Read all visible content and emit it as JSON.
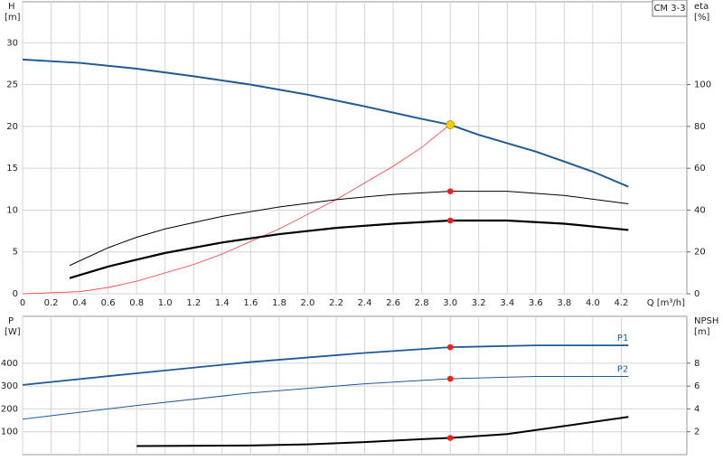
{
  "chart_data": [
    {
      "type": "line",
      "title": "CM 3-3",
      "ylabel": "H",
      "yunit": "[m]",
      "y2label": "eta",
      "y2unit": "[%]",
      "xlabel": "Q [m³/h]",
      "xlim": [
        0,
        4.66
      ],
      "ylim": [
        0,
        34.9
      ],
      "y2lim": [
        0,
        139.6
      ],
      "xticks": [
        0,
        0.2,
        0.4,
        0.6,
        0.8,
        {
          "value": 1,
          "label": "1.0"
        },
        1.2,
        1.4,
        1.6,
        1.8,
        {
          "value": 2,
          "label": "2.0"
        },
        2.2,
        2.4,
        2.6,
        2.8,
        {
          "value": 3,
          "label": "3.0"
        },
        3.2,
        3.4,
        3.6,
        3.8,
        {
          "value": 4,
          "label": "4.0"
        },
        4.2
      ],
      "yticks": [
        0,
        5,
        10,
        15,
        20,
        25,
        30
      ],
      "y2ticks": [
        0,
        20,
        40,
        60,
        80,
        100
      ],
      "grid": true,
      "series": [
        {
          "color": "#1f5a96",
          "line_width": 2,
          "axis": "y",
          "x": [
            0,
            0.4,
            0.8,
            1.2,
            1.6,
            2.0,
            2.4,
            2.8,
            3.0,
            3.2,
            3.6,
            4.0,
            4.25
          ],
          "values": [
            28,
            27.6,
            26.9,
            26.0,
            25.0,
            23.8,
            22.4,
            20.9,
            20.2,
            19.0,
            17.0,
            14.6,
            12.8
          ]
        },
        {
          "color": "#ff3b3b",
          "line_width": 0.8,
          "axis": "y2",
          "x": [
            0,
            0.4,
            0.6,
            0.8,
            1.0,
            1.2,
            1.4,
            1.6,
            1.8,
            2.0,
            2.2,
            2.4,
            2.6,
            2.8,
            3.0
          ],
          "values": [
            0,
            1,
            3,
            6,
            10,
            14,
            19,
            25,
            31,
            38,
            45,
            53,
            61,
            70,
            81
          ]
        },
        {
          "color": "#000000",
          "line_width": 1,
          "axis": "y2",
          "x": [
            0.33,
            0.6,
            0.8,
            1.0,
            1.4,
            1.8,
            2.2,
            2.6,
            3.0,
            3.4,
            3.8,
            4.25
          ],
          "values": [
            13.5,
            22,
            27,
            31,
            37,
            41.5,
            45,
            47.5,
            49,
            49,
            47,
            43
          ]
        },
        {
          "color": "#000000",
          "line_width": 2.2,
          "axis": "y2",
          "x": [
            0.33,
            0.6,
            0.8,
            1.0,
            1.4,
            1.8,
            2.2,
            2.6,
            3.0,
            3.4,
            3.8,
            4.25
          ],
          "values": [
            7.5,
            13,
            16.3,
            19.5,
            24.5,
            28.5,
            31.5,
            33.5,
            35,
            35,
            33.5,
            30.5
          ]
        }
      ],
      "points": [
        {
          "x": 3.0,
          "y": 20.2,
          "color": "#f5d000",
          "axis": "y"
        },
        {
          "x": 3.0,
          "y": 49,
          "color": "#ff1a1a",
          "axis": "y2"
        },
        {
          "x": 3.0,
          "y": 35,
          "color": "#ff1a1a",
          "axis": "y2"
        }
      ]
    },
    {
      "type": "line",
      "ylabel": "P",
      "yunit": "[W]",
      "y2label": "NPSH",
      "y2unit": "[m]",
      "xlim": [
        0,
        4.66
      ],
      "ylim": [
        0,
        605
      ],
      "y2lim": [
        0,
        12.1
      ],
      "xticks": [
        0,
        0.2,
        0.4,
        0.6,
        0.8,
        1,
        1.2,
        1.4,
        1.6,
        1.8,
        2,
        2.2,
        2.4,
        2.6,
        2.8,
        3,
        3.2,
        3.4,
        3.6,
        3.8,
        4,
        4.2
      ],
      "show_xtick_labels": false,
      "yticks": [
        100,
        200,
        300,
        400
      ],
      "y2ticks": [
        2,
        4,
        6,
        8
      ],
      "grid": true,
      "series": [
        {
          "name": "P1",
          "color": "#1f5a96",
          "line_width": 1.8,
          "axis": "y",
          "x": [
            0,
            0.8,
            1.6,
            2.4,
            3.0,
            3.6,
            4.25
          ],
          "values": [
            305,
            356,
            405,
            445,
            470,
            478,
            478
          ]
        },
        {
          "name": "P2",
          "color": "#1f5a96",
          "line_width": 1,
          "axis": "y",
          "x": [
            0,
            0.8,
            1.6,
            2.4,
            3.0,
            3.6,
            4.25
          ],
          "values": [
            155,
            215,
            270,
            310,
            332,
            342,
            342
          ]
        },
        {
          "color": "#000000",
          "line_width": 2,
          "axis": "y2",
          "x": [
            0.8,
            1.6,
            2.0,
            2.4,
            2.8,
            3.0,
            3.4,
            3.8,
            4.25
          ],
          "values": [
            0.75,
            0.8,
            0.9,
            1.1,
            1.35,
            1.46,
            1.8,
            2.5,
            3.3
          ]
        }
      ],
      "points": [
        {
          "x": 3.0,
          "y": 470,
          "color": "#ff1a1a",
          "axis": "y"
        },
        {
          "x": 3.0,
          "y": 332,
          "color": "#ff1a1a",
          "axis": "y"
        },
        {
          "x": 3.0,
          "y": 1.46,
          "color": "#ff1a1a",
          "axis": "y2"
        }
      ]
    }
  ]
}
